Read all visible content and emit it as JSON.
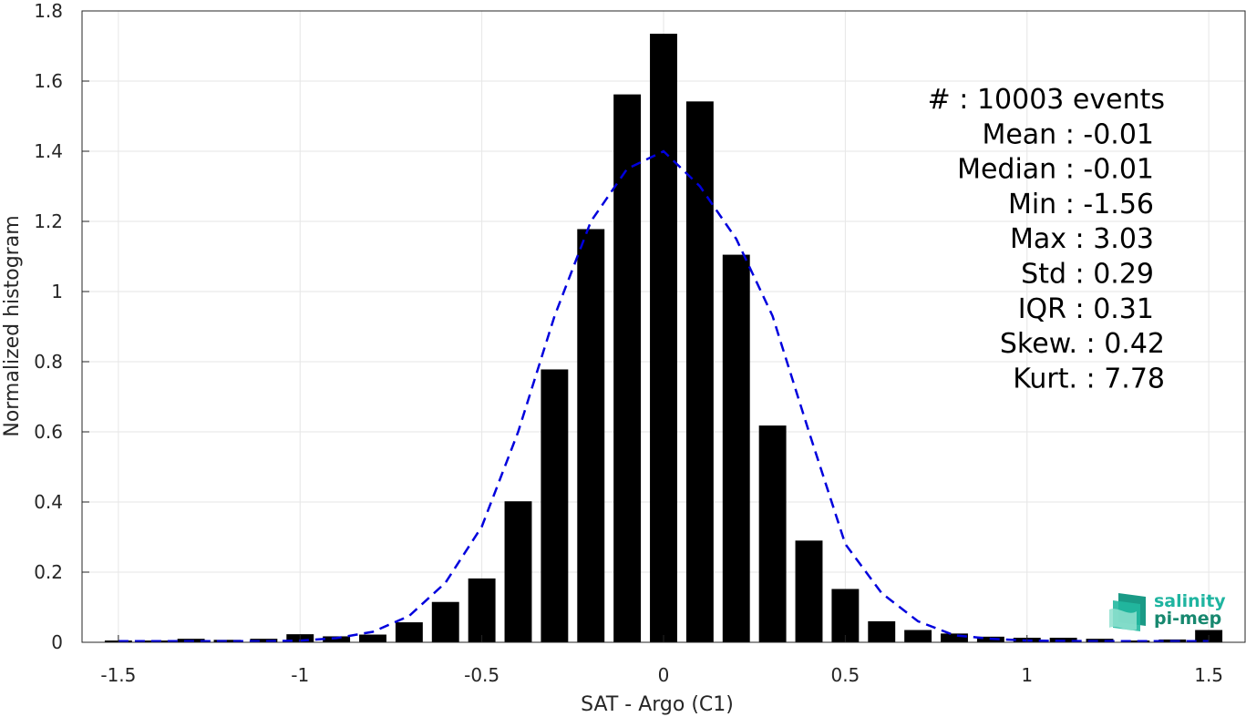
{
  "chart_data": {
    "type": "bar",
    "xlabel": "SAT - Argo (C1)",
    "ylabel": "Normalized histogram",
    "xlim": [
      -1.6,
      1.6
    ],
    "ylim": [
      0,
      1.8
    ],
    "xticks": [
      "-1.5",
      "-1",
      "-0.5",
      "0",
      "0.5",
      "1",
      "1.5"
    ],
    "yticks": [
      "0",
      "0.2",
      "0.4",
      "0.6",
      "0.8",
      "1",
      "1.2",
      "1.4",
      "1.6",
      "1.8"
    ],
    "xtick_values": [
      -1.5,
      -1,
      -0.5,
      0,
      0.5,
      1,
      1.5
    ],
    "ytick_values": [
      0,
      0.2,
      0.4,
      0.6,
      0.8,
      1,
      1.2,
      1.4,
      1.6,
      1.8
    ],
    "grid": true,
    "bar_width": 0.075,
    "bars": {
      "x": [
        -1.5,
        -1.4,
        -1.3,
        -1.2,
        -1.1,
        -1.0,
        -0.9,
        -0.8,
        -0.7,
        -0.6,
        -0.5,
        -0.4,
        -0.3,
        -0.2,
        -0.1,
        0.0,
        0.1,
        0.2,
        0.3,
        0.4,
        0.5,
        0.6,
        0.7,
        0.8,
        0.9,
        1.0,
        1.1,
        1.2,
        1.3,
        1.4,
        1.5
      ],
      "values": [
        0.005,
        0.005,
        0.01,
        0.007,
        0.01,
        0.023,
        0.017,
        0.022,
        0.057,
        0.115,
        0.182,
        0.402,
        0.778,
        1.178,
        1.562,
        1.735,
        1.542,
        1.105,
        0.618,
        0.29,
        0.152,
        0.06,
        0.035,
        0.025,
        0.016,
        0.013,
        0.013,
        0.01,
        0.005,
        0.008,
        0.035
      ],
      "color": "#000000"
    },
    "fit_curve": {
      "style": "dashed",
      "color": "#0000dd",
      "x": [
        -1.5,
        -1.4,
        -1.3,
        -1.2,
        -1.1,
        -1.0,
        -0.9,
        -0.8,
        -0.7,
        -0.6,
        -0.5,
        -0.4,
        -0.3,
        -0.2,
        -0.1,
        0.0,
        0.1,
        0.2,
        0.3,
        0.4,
        0.5,
        0.6,
        0.7,
        0.8,
        0.9,
        1.0,
        1.1,
        1.2,
        1.3,
        1.4,
        1.5
      ],
      "values": [
        0.003,
        0.003,
        0.003,
        0.003,
        0.003,
        0.005,
        0.012,
        0.03,
        0.075,
        0.17,
        0.33,
        0.6,
        0.93,
        1.2,
        1.35,
        1.4,
        1.3,
        1.15,
        0.93,
        0.6,
        0.28,
        0.14,
        0.06,
        0.02,
        0.01,
        0.005,
        0.004,
        0.003,
        0.003,
        0.003,
        0.003
      ]
    },
    "stats": [
      "#  : 10003 events",
      "Mean : -0.01",
      "Median : -0.01",
      "Min : -1.56",
      "Max : 3.03",
      "Std : 0.29",
      "IQR : 0.31",
      "Skew. : 0.42",
      "Kurt. : 7.78"
    ]
  },
  "logo": {
    "line1": "salinity",
    "line2": "pi-mep",
    "color_light": "#1fb4a0",
    "color_dark": "#17886f"
  }
}
